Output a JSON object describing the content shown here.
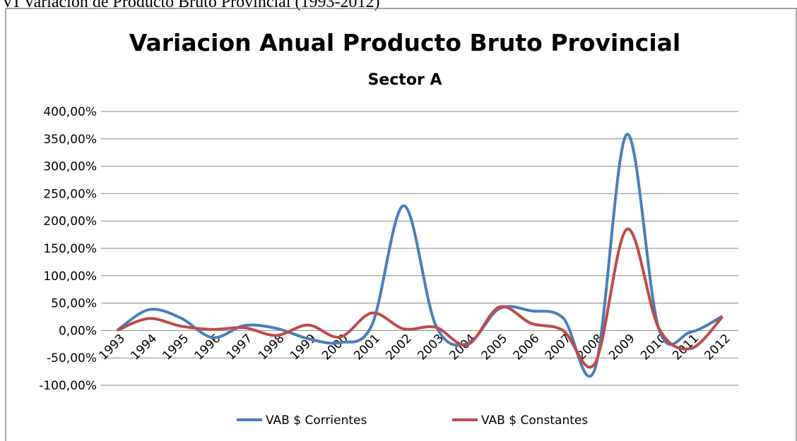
{
  "caption": "VI Variacion de Producto Bruto Provincial (1993-2012)",
  "chart_data": {
    "type": "line",
    "smooth": true,
    "title": "Variacion Anual Producto Bruto Provincial",
    "subtitle": "Sector A",
    "categories": [
      "1993",
      "1994",
      "1995",
      "1996",
      "1997",
      "1998",
      "1999",
      "2000",
      "2001",
      "2002",
      "2003",
      "2004",
      "2005",
      "2006",
      "2007",
      "2008",
      "2009",
      "2010",
      "2011",
      "2012"
    ],
    "series": [
      {
        "name": "VAB $ Corrientes",
        "color": "#4a7ebb",
        "values": [
          0,
          38,
          23,
          -13,
          9,
          4,
          -15,
          -22,
          10,
          228,
          10,
          -24,
          40,
          36,
          23,
          -70,
          358,
          4,
          -3,
          26
        ]
      },
      {
        "name": "VAB $ Constantes",
        "color": "#be4b48",
        "values": [
          0,
          22,
          8,
          2,
          5,
          -9,
          10,
          -12,
          32,
          3,
          6,
          -26,
          43,
          13,
          0,
          -60,
          185,
          5,
          -33,
          25
        ]
      }
    ],
    "ylim": [
      -100,
      400
    ],
    "yticks": [
      {
        "value": -100,
        "label": "-100,00%"
      },
      {
        "value": -50,
        "label": "-50,00%"
      },
      {
        "value": 0,
        "label": "0,00%"
      },
      {
        "value": 50,
        "label": "50,00%"
      },
      {
        "value": 100,
        "label": "100,00%"
      },
      {
        "value": 150,
        "label": "150,00%"
      },
      {
        "value": 200,
        "label": "200,00%"
      },
      {
        "value": 250,
        "label": "250,00%"
      },
      {
        "value": 300,
        "label": "300,00%"
      },
      {
        "value": 350,
        "label": "350,00%"
      },
      {
        "value": 400,
        "label": "400,00%"
      }
    ],
    "grid": true,
    "legend": "bottom"
  }
}
